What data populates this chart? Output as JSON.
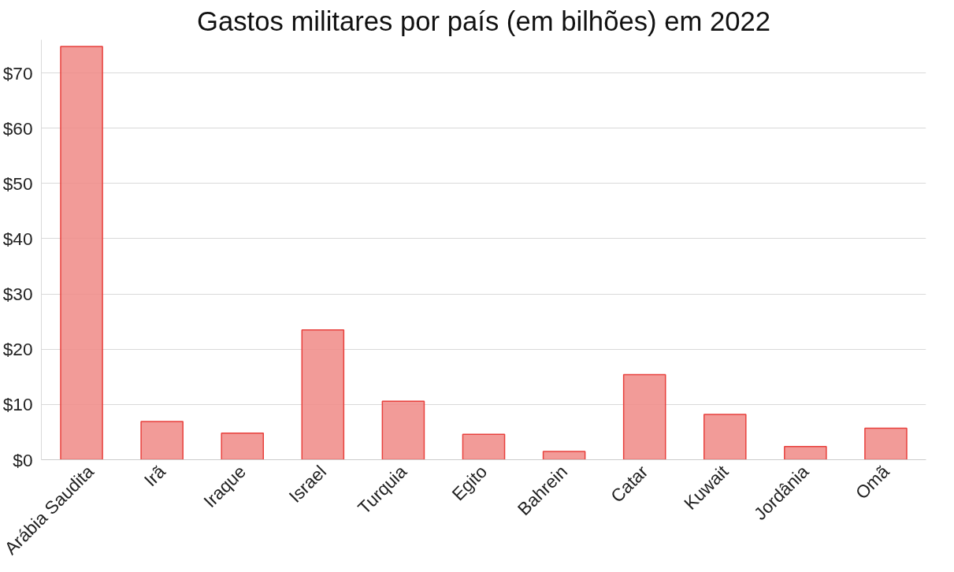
{
  "chart_data": {
    "type": "bar",
    "title": "Gastos militares por país (em bilhões) em 2022",
    "categories": [
      "Arábia Saudita",
      "Irã",
      "Iraque",
      "Israel",
      "Turquia",
      "Egito",
      "Bahrein",
      "Catar",
      "Kuwait",
      "Jordânia",
      "Omã"
    ],
    "values": [
      74.8,
      6.9,
      4.8,
      23.5,
      10.6,
      4.6,
      1.5,
      15.4,
      8.2,
      2.4,
      5.7
    ],
    "color": "#f08a86",
    "ylim": [
      0,
      76
    ],
    "yticks": [
      {
        "value": 0,
        "label": "$0"
      },
      {
        "value": 10,
        "label": "$10"
      },
      {
        "value": 20,
        "label": "$20"
      },
      {
        "value": 30,
        "label": "$30"
      },
      {
        "value": 40,
        "label": "$40"
      },
      {
        "value": 50,
        "label": "$50"
      },
      {
        "value": 60,
        "label": "$60"
      },
      {
        "value": 70,
        "label": "$70"
      }
    ],
    "grid": "y"
  }
}
